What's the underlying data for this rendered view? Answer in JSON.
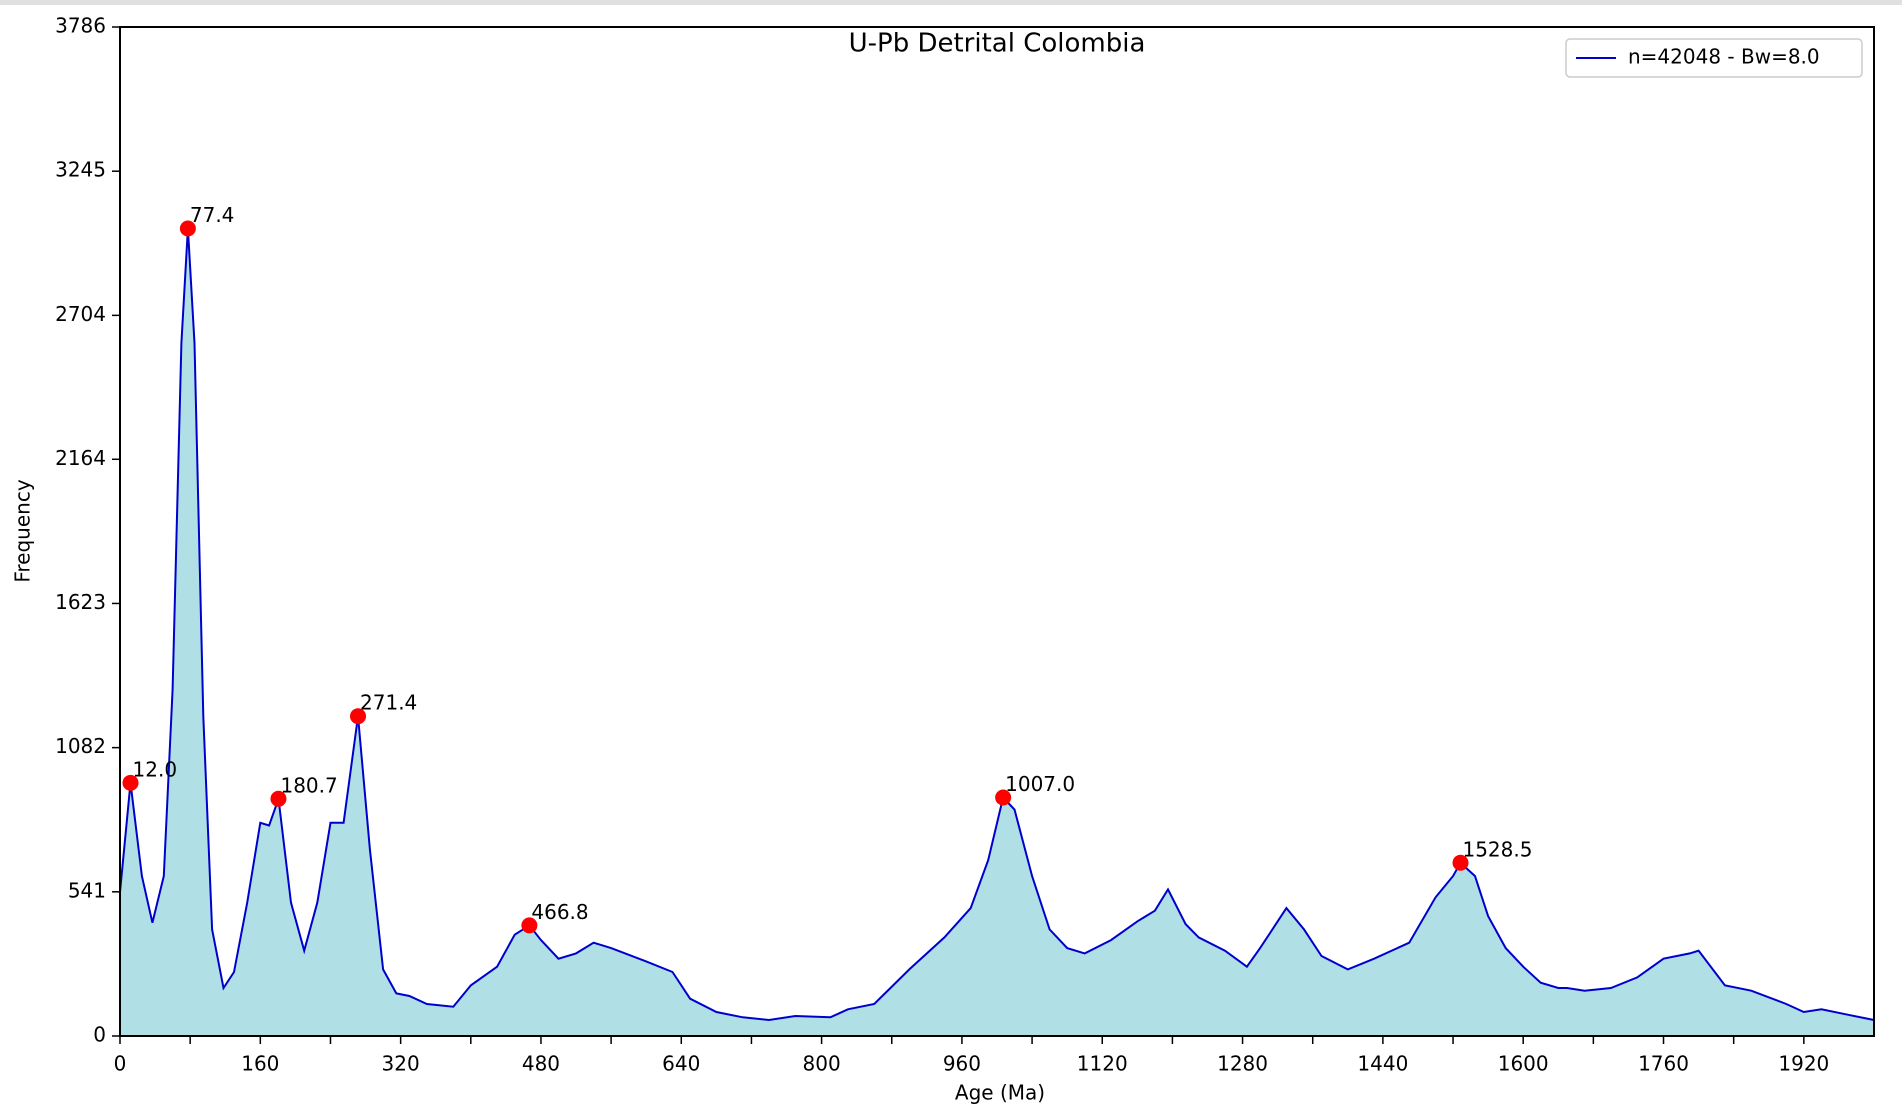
{
  "chart_data": {
    "type": "kde",
    "title": "U-Pb Detrital Colombia",
    "x_label": "Age (Ma)",
    "y_label": "Frequency",
    "xlim": [
      0,
      2000
    ],
    "ylim": [
      0,
      3786
    ],
    "xticks": [
      0,
      160,
      320,
      480,
      640,
      800,
      960,
      1120,
      1280,
      1440,
      1600,
      1760,
      1920
    ],
    "x_minor_ticks": [
      80,
      240,
      400,
      560,
      720,
      880,
      1040,
      1200,
      1360,
      1520,
      1680,
      1840
    ],
    "yticks": [
      0,
      541,
      1082,
      1623,
      2164,
      2704,
      3245,
      3786
    ],
    "legend_position": "upper right",
    "fill_color": "#b0e0e6",
    "series": [
      {
        "name": "n=42048 - Bw=8.0",
        "color": "#0000cd",
        "x": [
          0,
          12,
          25,
          37,
          50,
          60,
          70,
          77.4,
          85,
          95,
          105,
          118,
          130,
          145,
          160,
          170,
          180.7,
          195,
          210,
          225,
          240,
          255,
          271.4,
          285,
          300,
          315,
          330,
          350,
          380,
          400,
          430,
          450,
          466.8,
          480,
          500,
          520,
          540,
          560,
          600,
          630,
          650,
          680,
          710,
          740,
          770,
          810,
          830,
          860,
          900,
          940,
          970,
          990,
          1007,
          1020,
          1040,
          1060,
          1080,
          1100,
          1130,
          1160,
          1180,
          1195,
          1215,
          1230,
          1260,
          1285,
          1300,
          1330,
          1350,
          1370,
          1400,
          1430,
          1470,
          1500,
          1520,
          1528.5,
          1545,
          1560,
          1580,
          1600,
          1620,
          1640,
          1650,
          1670,
          1700,
          1730,
          1760,
          1790,
          1800,
          1830,
          1860,
          1900,
          1920,
          1940,
          1970,
          2000
        ],
        "values": [
          540,
          950,
          600,
          425,
          600,
          1300,
          2600,
          3030,
          2600,
          1200,
          400,
          180,
          240,
          500,
          800,
          790,
          890,
          500,
          320,
          500,
          800,
          800,
          1200,
          700,
          250,
          160,
          150,
          120,
          110,
          190,
          260,
          380,
          415,
          360,
          290,
          310,
          350,
          330,
          280,
          240,
          140,
          90,
          70,
          60,
          75,
          70,
          100,
          120,
          250,
          370,
          480,
          660,
          895,
          850,
          600,
          400,
          330,
          310,
          360,
          430,
          470,
          550,
          420,
          370,
          320,
          260,
          330,
          480,
          400,
          300,
          250,
          290,
          350,
          520,
          600,
          650,
          600,
          450,
          330,
          260,
          200,
          180,
          180,
          170,
          180,
          220,
          290,
          310,
          320,
          190,
          170,
          120,
          90,
          100,
          80,
          60
        ]
      }
    ],
    "peaks": {
      "color": "#ff0000",
      "x": [
        12,
        77.4,
        180.7,
        271.4,
        466.8,
        1007,
        1528.5
      ],
      "x_labels": [
        "12.0",
        "77.4",
        "180.7",
        "271.4",
        "466.8",
        "1007.0",
        "1528.5"
      ],
      "values": [
        950,
        3030,
        890,
        1200,
        415,
        895,
        650
      ]
    }
  }
}
